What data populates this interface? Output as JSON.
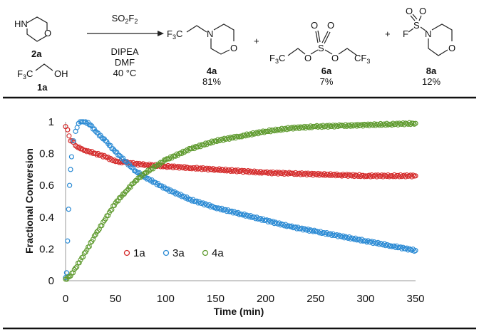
{
  "scheme": {
    "reactant_2a": {
      "atom_nh": "HN",
      "atom_o": "O",
      "label": "2a"
    },
    "reactant_1a": {
      "f3c": "F3C",
      "oh": "OH",
      "label": "1a"
    },
    "conditions": {
      "reagent": "SO2F2",
      "base": "DIPEA",
      "solvent": "DMF",
      "temperature": "40 °C"
    },
    "products": [
      {
        "label": "4a",
        "yield": "81%",
        "f3c": "F3C",
        "n": "N",
        "o": "O"
      },
      {
        "label": "6a",
        "yield": "7%",
        "f3c_left": "F3C",
        "cf3_right": "CF3",
        "s": "S",
        "o": "O"
      },
      {
        "label": "8a",
        "yield": "12%",
        "f": "F",
        "s": "S",
        "n": "N",
        "o": "O"
      }
    ],
    "plus": "+"
  },
  "chart_data": {
    "type": "scatter",
    "xlabel": "Time (min)",
    "ylabel": "Fractional Conversion",
    "xlim": [
      0,
      350
    ],
    "ylim": [
      0,
      1
    ],
    "xticks": [
      "0",
      "50",
      "100",
      "150",
      "200",
      "250",
      "300",
      "350"
    ],
    "yticks": [
      "0",
      "0.2",
      "0.4",
      "0.6",
      "0.8",
      "1"
    ],
    "grid": false,
    "legend": "inside-bottom-left",
    "series": [
      {
        "name": "1a",
        "color": "#d42a2a",
        "x": [
          0,
          2,
          5,
          8,
          10,
          15,
          20,
          30,
          40,
          50,
          60,
          70,
          80,
          100,
          125,
          150,
          175,
          200,
          225,
          250,
          275,
          300,
          325,
          350
        ],
        "y": [
          0.97,
          0.95,
          0.88,
          0.87,
          0.85,
          0.83,
          0.82,
          0.8,
          0.78,
          0.75,
          0.745,
          0.735,
          0.73,
          0.72,
          0.71,
          0.7,
          0.69,
          0.68,
          0.675,
          0.67,
          0.665,
          0.66,
          0.66,
          0.66
        ]
      },
      {
        "name": "3a",
        "color": "#2a8ad4",
        "x": [
          0,
          1,
          2,
          3,
          4,
          5,
          6,
          8,
          10,
          13,
          16,
          20,
          25,
          30,
          40,
          50,
          60,
          70,
          80,
          100,
          125,
          150,
          175,
          200,
          225,
          250,
          275,
          300,
          325,
          350
        ],
        "y": [
          0.02,
          0.05,
          0.25,
          0.45,
          0.6,
          0.7,
          0.78,
          0.88,
          0.94,
          0.99,
          1.0,
          1.0,
          0.98,
          0.94,
          0.88,
          0.81,
          0.75,
          0.69,
          0.65,
          0.58,
          0.51,
          0.46,
          0.42,
          0.38,
          0.34,
          0.31,
          0.28,
          0.25,
          0.22,
          0.19
        ]
      },
      {
        "name": "4a",
        "color": "#5e9a2e",
        "x": [
          0,
          5,
          10,
          20,
          30,
          40,
          50,
          60,
          70,
          80,
          90,
          100,
          125,
          150,
          175,
          200,
          225,
          250,
          275,
          300,
          325,
          350
        ],
        "y": [
          0.01,
          0.03,
          0.08,
          0.18,
          0.29,
          0.39,
          0.49,
          0.56,
          0.63,
          0.68,
          0.72,
          0.76,
          0.83,
          0.88,
          0.91,
          0.94,
          0.96,
          0.97,
          0.975,
          0.98,
          0.985,
          0.99
        ]
      }
    ]
  }
}
